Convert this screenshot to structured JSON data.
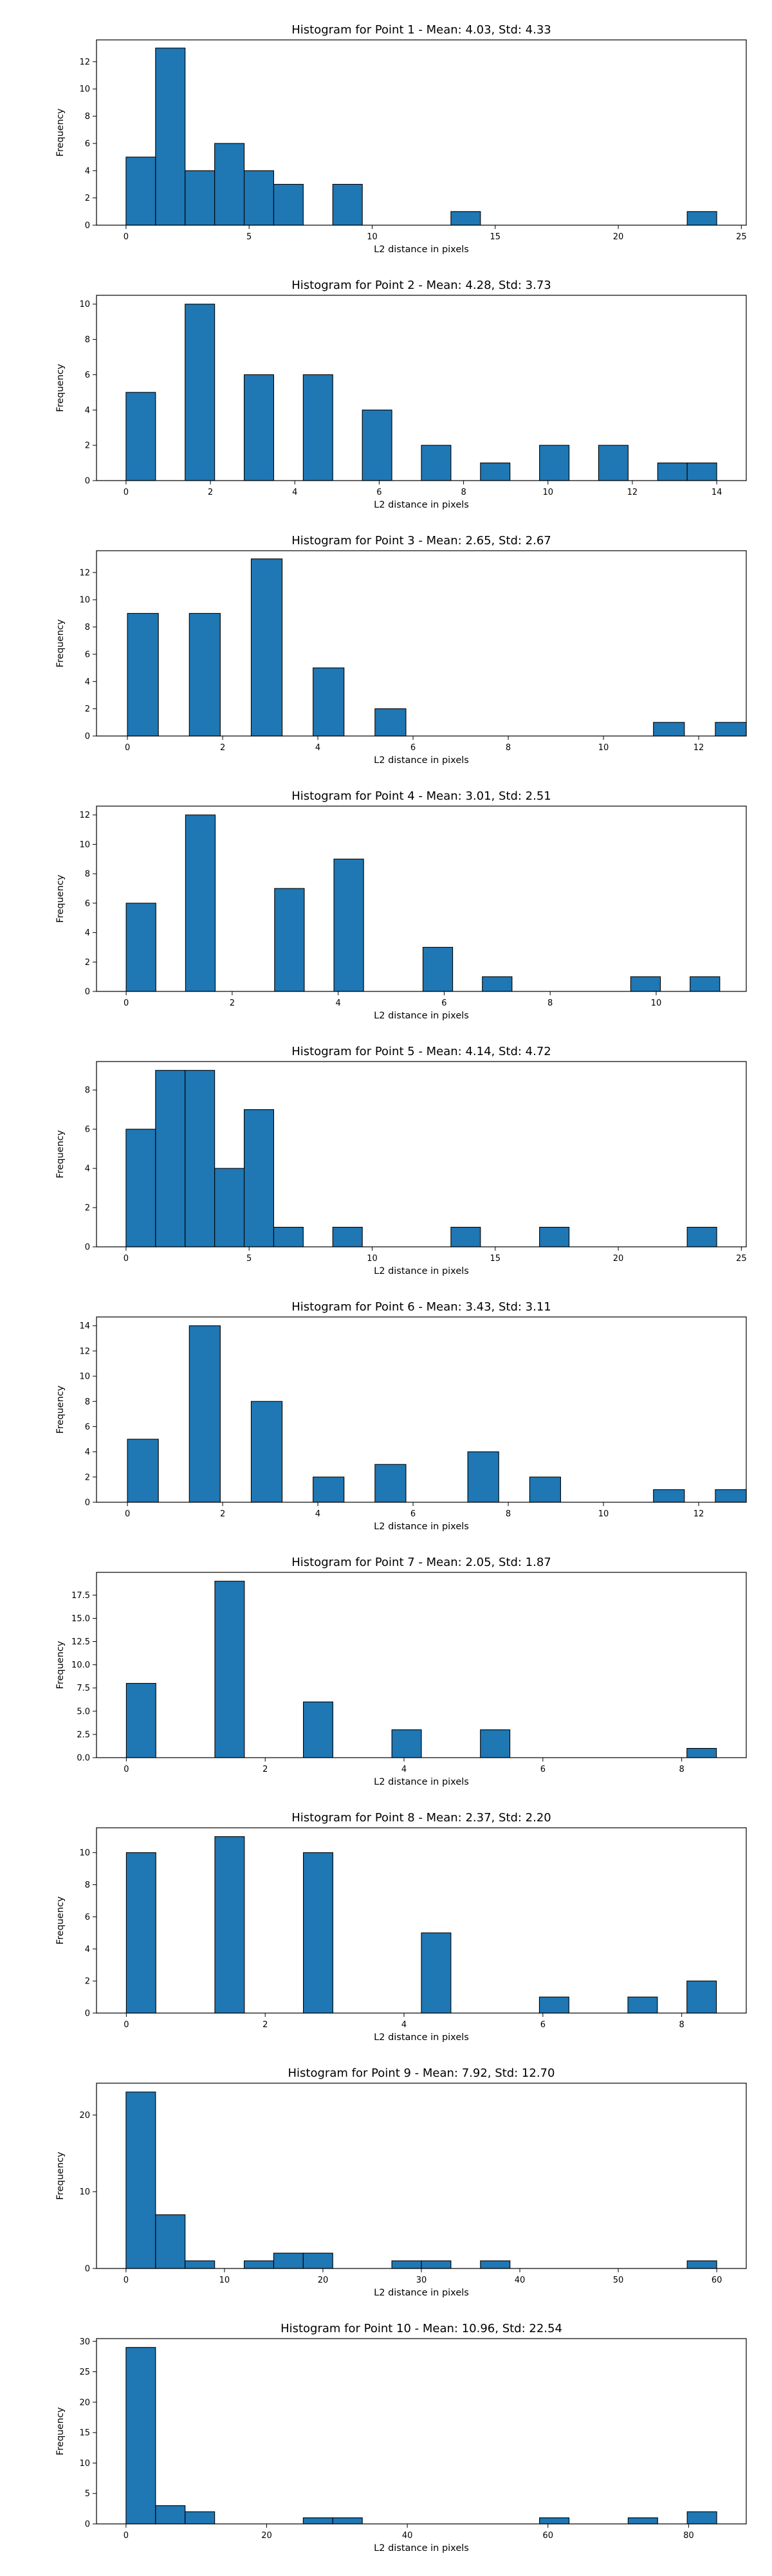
{
  "colors": {
    "bar_fill": "#1f77b4",
    "bar_edge": "#000000",
    "background": "#ffffff"
  },
  "chart_data": [
    {
      "type": "bar",
      "title": "Histogram for Point 1 - Mean: 4.03, Std: 4.33",
      "xlabel": "L2 distance in pixels",
      "ylabel": "Frequency",
      "xlim": [
        -1.2,
        25.2
      ],
      "ylim": [
        0,
        13.6
      ],
      "xticks": [
        0,
        5,
        10,
        15,
        20,
        25
      ],
      "yticks": [
        0,
        2,
        4,
        6,
        8,
        10,
        12
      ],
      "bin_edges": [
        0,
        1.2,
        2.4,
        3.6,
        4.8,
        6.0,
        7.2,
        8.4,
        9.6,
        10.8,
        12.0,
        13.2,
        14.4,
        15.6,
        16.8,
        18.0,
        19.2,
        20.4,
        21.6,
        22.8,
        24.0
      ],
      "values": [
        5,
        13,
        4,
        6,
        4,
        3,
        0,
        3,
        0,
        0,
        0,
        1,
        0,
        0,
        0,
        0,
        0,
        0,
        0,
        1
      ]
    },
    {
      "type": "bar",
      "title": "Histogram for Point 2 - Mean: 4.28, Std: 3.73",
      "xlabel": "L2 distance in pixels",
      "ylabel": "Frequency",
      "xlim": [
        -0.7,
        14.7
      ],
      "ylim": [
        0,
        10.5
      ],
      "xticks": [
        0,
        2,
        4,
        6,
        8,
        10,
        12,
        14
      ],
      "yticks": [
        0,
        2,
        4,
        6,
        8,
        10
      ],
      "bin_edges": [
        0,
        0.7,
        1.4,
        2.1,
        2.8,
        3.5,
        4.2,
        4.9,
        5.6,
        6.3,
        7.0,
        7.7,
        8.4,
        9.1,
        9.8,
        10.5,
        11.2,
        11.9,
        12.6,
        13.3,
        14.0
      ],
      "values": [
        5,
        0,
        10,
        0,
        6,
        0,
        6,
        0,
        4,
        0,
        2,
        0,
        1,
        0,
        2,
        0,
        2,
        0,
        1,
        1
      ]
    },
    {
      "type": "bar",
      "title": "Histogram for Point 3 - Mean: 2.65, Std: 2.67",
      "xlabel": "L2 distance in pixels",
      "ylabel": "Frequency",
      "xlim": [
        -0.65,
        13.0
      ],
      "ylim": [
        0,
        13.6
      ],
      "xticks": [
        0,
        2,
        4,
        6,
        8,
        10,
        12
      ],
      "yticks": [
        0,
        2,
        4,
        6,
        8,
        10,
        12
      ],
      "bin_edges": [
        0,
        0.65,
        1.3,
        1.95,
        2.6,
        3.25,
        3.9,
        4.55,
        5.2,
        5.85,
        6.5,
        7.15,
        7.8,
        8.45,
        9.1,
        9.75,
        10.4,
        11.05,
        11.7,
        12.35,
        13.0
      ],
      "values": [
        9,
        0,
        9,
        0,
        13,
        0,
        5,
        0,
        2,
        0,
        0,
        0,
        0,
        0,
        0,
        0,
        0,
        1,
        0,
        1
      ]
    },
    {
      "type": "bar",
      "title": "Histogram for Point 4 - Mean: 3.01, Std: 2.51",
      "xlabel": "L2 distance in pixels",
      "ylabel": "Frequency",
      "xlim": [
        -0.56,
        11.7
      ],
      "ylim": [
        0,
        12.6
      ],
      "xticks": [
        0,
        2,
        4,
        6,
        8,
        10
      ],
      "yticks": [
        0,
        2,
        4,
        6,
        8,
        10,
        12
      ],
      "bin_edges": [
        0,
        0.56,
        1.12,
        1.68,
        2.24,
        2.8,
        3.36,
        3.92,
        4.48,
        5.04,
        5.6,
        6.16,
        6.72,
        7.28,
        7.84,
        8.4,
        8.96,
        9.52,
        10.08,
        10.64,
        11.2
      ],
      "values": [
        6,
        0,
        12,
        0,
        0,
        7,
        0,
        9,
        0,
        0,
        3,
        0,
        1,
        0,
        0,
        0,
        0,
        1,
        0,
        1
      ]
    },
    {
      "type": "bar",
      "title": "Histogram for Point 5 - Mean: 4.14, Std: 4.72",
      "xlabel": "L2 distance in pixels",
      "ylabel": "Frequency",
      "xlim": [
        -1.2,
        25.2
      ],
      "ylim": [
        0,
        9.45
      ],
      "xticks": [
        0,
        5,
        10,
        15,
        20,
        25
      ],
      "yticks": [
        0,
        2,
        4,
        6,
        8
      ],
      "bin_edges": [
        0,
        1.2,
        2.4,
        3.6,
        4.8,
        6.0,
        7.2,
        8.4,
        9.6,
        10.8,
        12.0,
        13.2,
        14.4,
        15.6,
        16.8,
        18.0,
        19.2,
        20.4,
        21.6,
        22.8,
        24.0
      ],
      "values": [
        6,
        9,
        9,
        4,
        7,
        1,
        0,
        1,
        0,
        0,
        0,
        1,
        0,
        0,
        1,
        0,
        0,
        0,
        0,
        1
      ]
    },
    {
      "type": "bar",
      "title": "Histogram for Point 6 - Mean: 3.43, Std: 3.11",
      "xlabel": "L2 distance in pixels",
      "ylabel": "Frequency",
      "xlim": [
        -0.65,
        13.0
      ],
      "ylim": [
        0,
        14.7
      ],
      "xticks": [
        0,
        2,
        4,
        6,
        8,
        10,
        12
      ],
      "yticks": [
        0,
        2,
        4,
        6,
        8,
        10,
        12,
        14
      ],
      "bin_edges": [
        0,
        0.65,
        1.3,
        1.95,
        2.6,
        3.25,
        3.9,
        4.55,
        5.2,
        5.85,
        6.5,
        7.15,
        7.8,
        8.45,
        9.1,
        9.75,
        10.4,
        11.05,
        11.7,
        12.35,
        13.0
      ],
      "values": [
        5,
        0,
        14,
        0,
        8,
        0,
        2,
        0,
        3,
        0,
        0,
        4,
        0,
        2,
        0,
        0,
        0,
        1,
        0,
        1
      ]
    },
    {
      "type": "bar",
      "title": "Histogram for Point 7 - Mean: 2.05, Std: 1.87",
      "xlabel": "L2 distance in pixels",
      "ylabel": "Frequency",
      "xlim": [
        -0.43,
        8.93
      ],
      "ylim": [
        0,
        19.95
      ],
      "xticks": [
        0,
        2,
        4,
        6,
        8
      ],
      "yticks": [
        0.0,
        2.5,
        5.0,
        7.5,
        10.0,
        12.5,
        15.0,
        17.5
      ],
      "ytick_labels": [
        "0.0",
        "2.5",
        "5.0",
        "7.5",
        "10.0",
        "12.5",
        "15.0",
        "17.5"
      ],
      "bin_edges": [
        0,
        0.425,
        0.85,
        1.275,
        1.7,
        2.125,
        2.55,
        2.975,
        3.4,
        3.825,
        4.25,
        4.675,
        5.1,
        5.525,
        5.95,
        6.375,
        6.8,
        7.225,
        7.65,
        8.075,
        8.5
      ],
      "values": [
        8,
        0,
        0,
        19,
        0,
        0,
        6,
        0,
        0,
        3,
        0,
        0,
        3,
        0,
        0,
        0,
        0,
        0,
        0,
        1
      ]
    },
    {
      "type": "bar",
      "title": "Histogram for Point 8 - Mean: 2.37, Std: 2.20",
      "xlabel": "L2 distance in pixels",
      "ylabel": "Frequency",
      "xlim": [
        -0.43,
        8.93
      ],
      "ylim": [
        0,
        11.55
      ],
      "xticks": [
        0,
        2,
        4,
        6,
        8
      ],
      "yticks": [
        0,
        2,
        4,
        6,
        8,
        10
      ],
      "bin_edges": [
        0,
        0.425,
        0.85,
        1.275,
        1.7,
        2.125,
        2.55,
        2.975,
        3.4,
        3.825,
        4.25,
        4.675,
        5.1,
        5.525,
        5.95,
        6.375,
        6.8,
        7.225,
        7.65,
        8.075,
        8.5
      ],
      "values": [
        10,
        0,
        0,
        11,
        0,
        0,
        10,
        0,
        0,
        0,
        5,
        0,
        0,
        0,
        1,
        0,
        0,
        1,
        0,
        2
      ]
    },
    {
      "type": "bar",
      "title": "Histogram for Point 9 - Mean: 7.92, Std: 12.70",
      "xlabel": "L2 distance in pixels",
      "ylabel": "Frequency",
      "xlim": [
        -3.0,
        63.0
      ],
      "ylim": [
        0,
        24.15
      ],
      "xticks": [
        0,
        10,
        20,
        30,
        40,
        50,
        60
      ],
      "yticks": [
        0,
        10,
        20
      ],
      "bin_edges": [
        0,
        3,
        6,
        9,
        12,
        15,
        18,
        21,
        24,
        27,
        30,
        33,
        36,
        39,
        42,
        45,
        48,
        51,
        54,
        57,
        60
      ],
      "values": [
        23,
        7,
        1,
        0,
        1,
        2,
        2,
        0,
        0,
        1,
        1,
        0,
        1,
        0,
        0,
        0,
        0,
        0,
        0,
        1
      ]
    },
    {
      "type": "bar",
      "title": "Histogram for Point 10 - Mean: 10.96, Std: 22.54",
      "xlabel": "L2 distance in pixels",
      "ylabel": "Frequency",
      "xlim": [
        -4.2,
        88.2
      ],
      "ylim": [
        0,
        30.45
      ],
      "xticks": [
        0,
        20,
        40,
        60,
        80
      ],
      "yticks": [
        0,
        5,
        10,
        15,
        20,
        25,
        30
      ],
      "bin_edges": [
        0,
        4.2,
        8.4,
        12.6,
        16.8,
        21.0,
        25.2,
        29.4,
        33.6,
        37.8,
        42.0,
        46.2,
        50.4,
        54.6,
        58.8,
        63.0,
        67.2,
        71.4,
        75.6,
        79.8,
        84.0
      ],
      "values": [
        29,
        3,
        2,
        0,
        0,
        0,
        1,
        1,
        0,
        0,
        0,
        0,
        0,
        0,
        1,
        0,
        0,
        1,
        0,
        2
      ]
    }
  ]
}
